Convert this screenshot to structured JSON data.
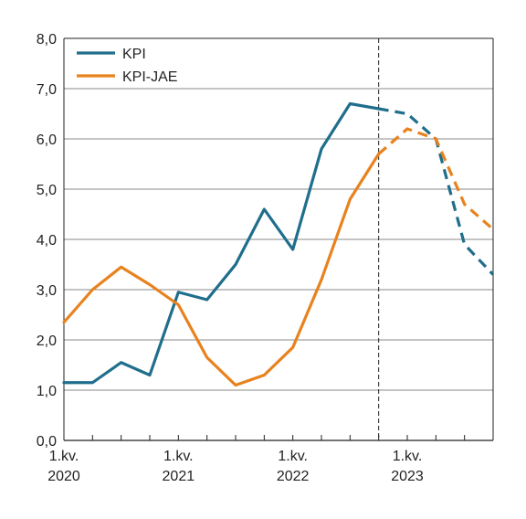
{
  "chart_data": {
    "type": "line",
    "title": "",
    "xlabel": "",
    "ylabel": "",
    "x": [
      "2020Q1",
      "2020Q2",
      "2020Q3",
      "2020Q4",
      "2021Q1",
      "2021Q2",
      "2021Q3",
      "2021Q4",
      "2022Q1",
      "2022Q2",
      "2022Q3",
      "2022Q4",
      "2023Q1",
      "2023Q2",
      "2023Q3",
      "2023Q4"
    ],
    "x_tick_labels": [
      {
        "line1": "1.kv.",
        "line2": "2020",
        "at_index": 0
      },
      {
        "line1": "1.kv.",
        "line2": "2021",
        "at_index": 4
      },
      {
        "line1": "1.kv.",
        "line2": "2022",
        "at_index": 8
      },
      {
        "line1": "1.kv.",
        "line2": "2023",
        "at_index": 12
      }
    ],
    "y_ticks": [
      "0,0",
      "1,0",
      "2,0",
      "3,0",
      "4,0",
      "5,0",
      "6,0",
      "7,0",
      "8,0"
    ],
    "ylim": [
      0,
      8
    ],
    "grid": true,
    "legend_position": "top-left",
    "forecast_start_index": 11,
    "series": [
      {
        "name": "KPI",
        "color": "#1f6e8c",
        "values": [
          1.15,
          1.15,
          1.55,
          1.3,
          2.95,
          2.8,
          3.5,
          4.6,
          3.8,
          5.8,
          6.7,
          6.6,
          6.5,
          6.0,
          3.9,
          3.3
        ],
        "style_actual": "solid",
        "style_forecast": "dashed"
      },
      {
        "name": "KPI-JAE",
        "color": "#e8821e",
        "values": [
          2.35,
          3.0,
          3.45,
          3.1,
          2.7,
          1.65,
          1.1,
          1.3,
          1.85,
          3.2,
          4.8,
          5.7,
          6.2,
          6.0,
          4.7,
          4.2
        ],
        "style_actual": "solid",
        "style_forecast": "dashed"
      }
    ]
  }
}
